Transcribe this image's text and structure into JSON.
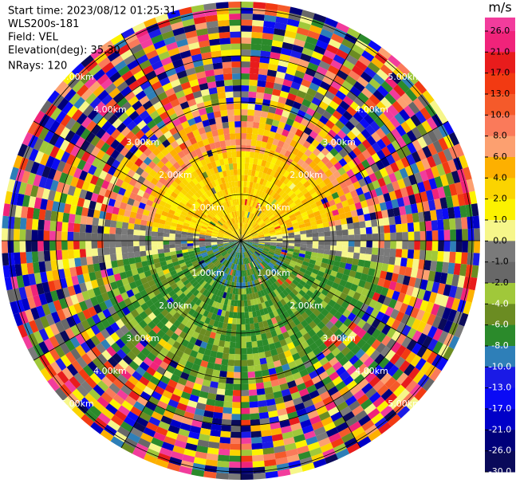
{
  "chart_data": {
    "type": "radar-ppi",
    "header": [
      "Start time: 2023/08/12 01:25:31",
      "WLS200s-181",
      "Field: VEL",
      "Elevation(deg): 35.30",
      "NRays: 120"
    ],
    "colorbar": {
      "unit": "m/s",
      "ticks": [
        {
          "value": 26,
          "label": "26.0"
        },
        {
          "value": 21,
          "label": "21.0"
        },
        {
          "value": 17,
          "label": "17.0"
        },
        {
          "value": 13,
          "label": "13.0"
        },
        {
          "value": 10,
          "label": "10.0"
        },
        {
          "value": 8,
          "label": "8.0"
        },
        {
          "value": 6,
          "label": "6.0"
        },
        {
          "value": 4,
          "label": "4.0"
        },
        {
          "value": 2,
          "label": "2.0"
        },
        {
          "value": 1,
          "label": "1.0"
        },
        {
          "value": 0,
          "label": "0.0"
        },
        {
          "value": -1,
          "label": "-1.0"
        },
        {
          "value": -2,
          "label": "-2.0"
        },
        {
          "value": -4,
          "label": "-4.0"
        },
        {
          "value": -6,
          "label": "-6.0"
        },
        {
          "value": -8,
          "label": "-8.0"
        },
        {
          "value": -10,
          "label": "-10.0"
        },
        {
          "value": -13,
          "label": "-13.0"
        },
        {
          "value": -17,
          "label": "-17.0"
        },
        {
          "value": -21,
          "label": "-21.0"
        },
        {
          "value": -26,
          "label": "-26.0"
        },
        {
          "value": -30,
          "label": "-30.0"
        }
      ],
      "colors": [
        "#f23c9c",
        "#f0237a",
        "#e81c1c",
        "#f23a12",
        "#f55a2a",
        "#fa7a5a",
        "#fca070",
        "#fdb000",
        "#fbd400",
        "#fcf200",
        "#f6f68a",
        "#7a7a7a",
        "#686868",
        "#a0c83a",
        "#6b8c22",
        "#2b8a2b",
        "#2e7fb8",
        "#1a1ae6",
        "#0a0af5",
        "#0000c8",
        "#00007a",
        "#0a0a5a"
      ]
    },
    "range_rings": [
      {
        "value": 1,
        "label": "1.00km"
      },
      {
        "value": 2,
        "label": "2.00km"
      },
      {
        "value": 3,
        "label": "3.00km"
      },
      {
        "value": 4,
        "label": "4.00km"
      },
      {
        "value": 5,
        "label": "5.00km"
      }
    ]
  }
}
